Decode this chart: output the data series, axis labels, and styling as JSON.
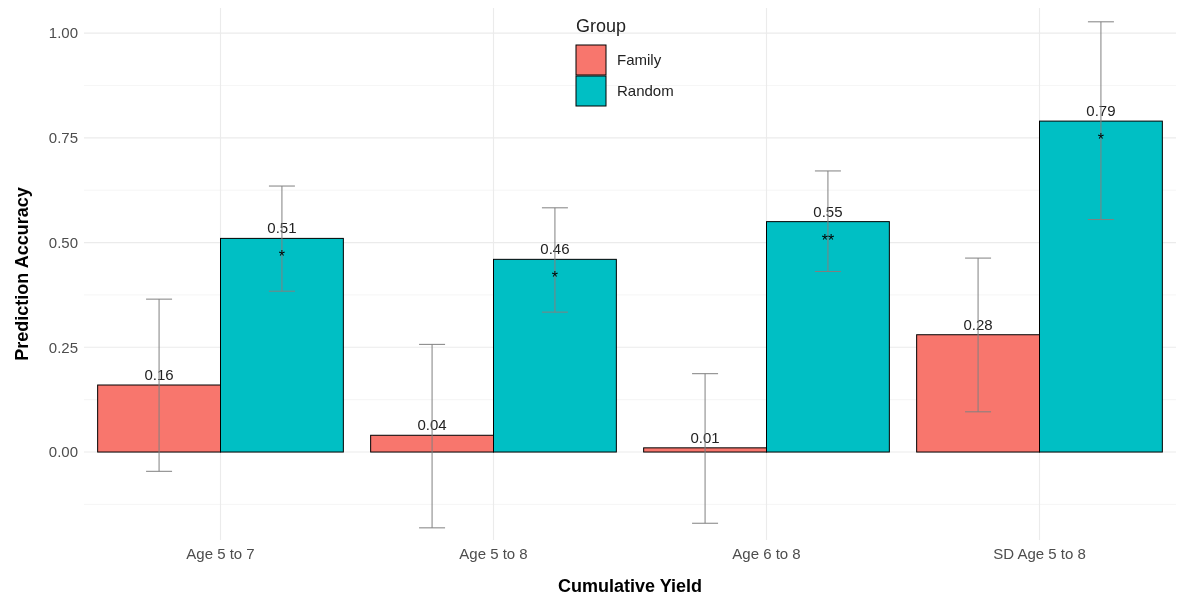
{
  "chart_data": {
    "type": "bar",
    "xlabel": "Cumulative Yield",
    "ylabel": "Prediction Accuracy",
    "legend_title": "Group",
    "legend": "top",
    "categories": [
      "Age 5 to 7",
      "Age 5 to 8",
      "Age 6 to 8",
      "SD Age 5 to 8"
    ],
    "series": [
      {
        "name": "Family",
        "color": "#f8766d",
        "values": [
          0.16,
          0.04,
          0.01,
          0.28
        ],
        "errors": [
          [
            -0.046,
            0.365
          ],
          [
            -0.181,
            0.257
          ],
          [
            -0.17,
            0.187
          ],
          [
            0.096,
            0.463
          ]
        ]
      },
      {
        "name": "Random",
        "color": "#00bfc4",
        "values": [
          0.51,
          0.46,
          0.55,
          0.79
        ],
        "errors": [
          [
            0.384,
            0.635
          ],
          [
            0.334,
            0.583
          ],
          [
            0.431,
            0.671
          ],
          [
            0.555,
            1.027
          ]
        ]
      }
    ],
    "ylim": [
      -0.21,
      1.06
    ],
    "yticks": [
      {
        "value": 0,
        "label": "0.00"
      },
      {
        "value": 0.25,
        "label": "0.25"
      },
      {
        "value": 0.5,
        "label": "0.50"
      },
      {
        "value": 0.75,
        "label": "0.75"
      },
      {
        "value": 1,
        "label": "1.00"
      }
    ],
    "grid": true,
    "data_labels": true,
    "annotations": [
      "*",
      "*",
      "**",
      "*"
    ]
  }
}
